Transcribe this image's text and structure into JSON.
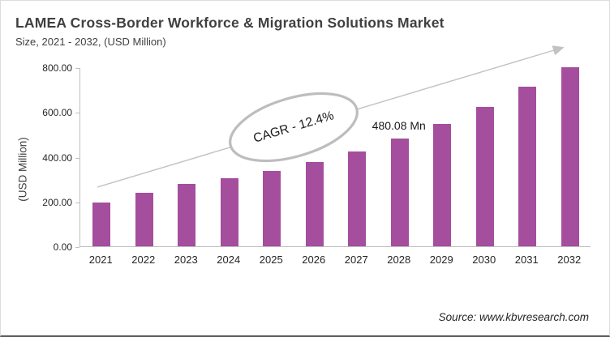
{
  "chart_data": {
    "type": "bar",
    "title": "LAMEA Cross-Border Workforce & Migration Solutions Market",
    "subtitle": "Size, 2021 - 2032, (USD Million)",
    "ylabel": "(USD Million)",
    "xlabel": "",
    "ylim": [
      0,
      800
    ],
    "y_ticks": [
      0,
      200,
      400,
      600,
      800
    ],
    "y_tick_labels": [
      "0.00",
      "200.00",
      "400.00",
      "600.00",
      "800.00"
    ],
    "categories": [
      "2021",
      "2022",
      "2023",
      "2024",
      "2025",
      "2026",
      "2027",
      "2028",
      "2029",
      "2030",
      "2031",
      "2032"
    ],
    "values": [
      195,
      240,
      280,
      305,
      338,
      378,
      424,
      480.08,
      545,
      622,
      712,
      800
    ],
    "grid": false,
    "legend": false,
    "annotations": {
      "cagr_label": "CAGR - 12.4%",
      "value_callout": {
        "text": "480.08 Mn",
        "category": "2028"
      }
    },
    "colors": {
      "bar": "#A54E9D",
      "axis": "#BFBFBF",
      "trend_arrow": "#C2C2C2",
      "ellipse_stroke": "#BDBDBD",
      "title_text": "#404040",
      "tick_text": "#262626"
    },
    "source": "Source: www.kbvresearch.com"
  }
}
